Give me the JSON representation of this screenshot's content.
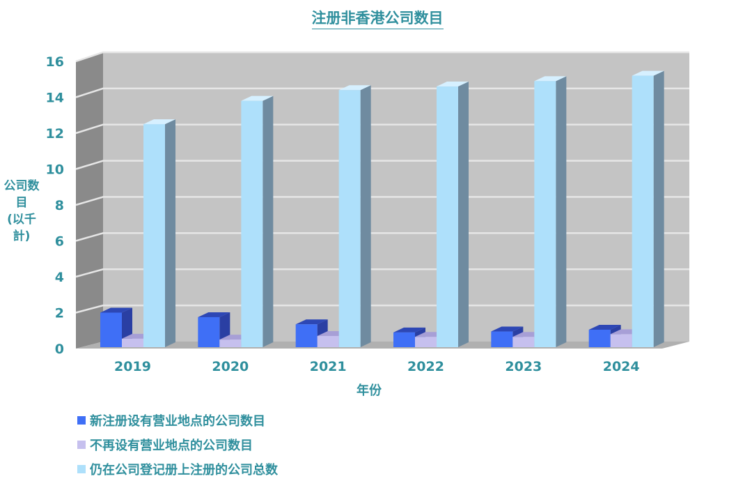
{
  "chart_data": {
    "type": "bar",
    "title": "注册非香港公司数目",
    "ylabel": "公司数目 (以千計)",
    "ylabel_lines": [
      "公司数目",
      "(以千計)"
    ],
    "xlabel": "年份",
    "categories": [
      "2019",
      "2020",
      "2021",
      "2022",
      "2023",
      "2024"
    ],
    "series": [
      {
        "name": "新注册设有营业地点的公司数目",
        "values": [
          2.0,
          1.75,
          1.35,
          0.9,
          0.95,
          1.05
        ],
        "color": "#3f6ff6"
      },
      {
        "name": "不再设有营业地点的公司数目",
        "values": [
          0.55,
          0.5,
          0.7,
          0.65,
          0.65,
          0.8
        ],
        "color": "#c6c0ee"
      },
      {
        "name": "仍在公司登记册上注册的公司总数",
        "values": [
          12.5,
          13.8,
          14.4,
          14.6,
          14.9,
          15.2
        ],
        "color": "#aee0fb"
      }
    ],
    "ylim": [
      0,
      16
    ],
    "yticks": [
      0,
      2,
      4,
      6,
      8,
      10,
      12,
      14,
      16
    ],
    "grid": true,
    "legend_position": "bottom-left",
    "style": "3d"
  }
}
